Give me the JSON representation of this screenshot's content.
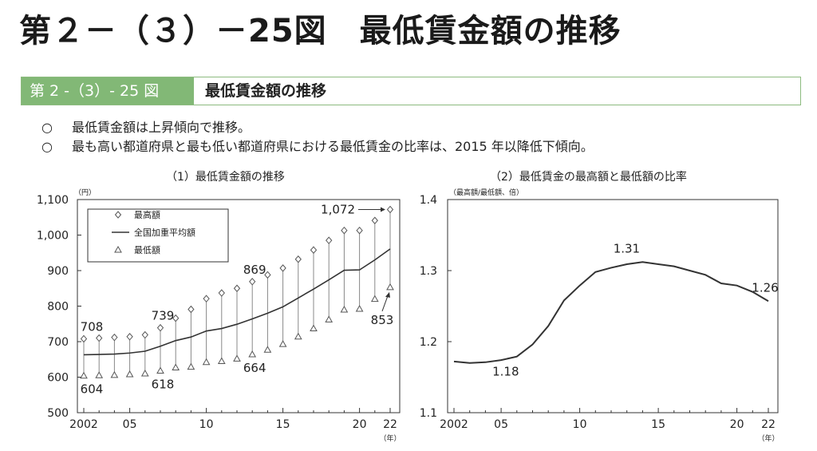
{
  "header": {
    "main_title": "第２－（３）－25図　最低賃金額の推移",
    "band_tag": "第 2 -（3）- 25 図",
    "band_title": "最低賃金額の推移"
  },
  "bullets": [
    {
      "mark": "○",
      "text": "最低賃金額は上昇傾向で推移。"
    },
    {
      "mark": "○",
      "text": "最も高い都道府県と最も低い都道府県における最低賃金の比率は、2015 年以降低下傾向。"
    }
  ],
  "chart_data": [
    {
      "type": "line",
      "title": "（1）最低賃金額の推移",
      "y_unit": "（円）",
      "x_unit": "（年）",
      "x": [
        2002,
        2003,
        2004,
        2005,
        2006,
        2007,
        2008,
        2009,
        2010,
        2011,
        2012,
        2013,
        2014,
        2015,
        2016,
        2017,
        2018,
        2019,
        2020,
        2021,
        2022
      ],
      "x_tick_values": [
        2002,
        2005,
        2010,
        2015,
        2020,
        2022
      ],
      "x_tick_labels": [
        "2002",
        "05",
        "10",
        "15",
        "20",
        "22"
      ],
      "ylim": [
        500,
        1100
      ],
      "y_ticks": [
        500,
        600,
        700,
        800,
        900,
        1000,
        1100
      ],
      "y_tick_labels": [
        "500",
        "600",
        "700",
        "800",
        "900",
        "1,000",
        "1,100"
      ],
      "grid": false,
      "legend_position": "top-left",
      "series": [
        {
          "name": "最高額",
          "marker": "diamond",
          "values": [
            708,
            710,
            712,
            714,
            719,
            739,
            766,
            791,
            821,
            837,
            850,
            869,
            888,
            907,
            932,
            958,
            985,
            1013,
            1013,
            1041,
            1072
          ]
        },
        {
          "name": "全国加重平均額",
          "marker": "line",
          "values": [
            663,
            664,
            665,
            668,
            673,
            687,
            703,
            713,
            730,
            737,
            749,
            764,
            780,
            798,
            823,
            848,
            874,
            901,
            902,
            930,
            961
          ]
        },
        {
          "name": "最低額",
          "marker": "triangle",
          "values": [
            604,
            605,
            606,
            608,
            610,
            618,
            627,
            629,
            642,
            645,
            652,
            664,
            677,
            693,
            714,
            737,
            762,
            790,
            792,
            820,
            853
          ]
        }
      ],
      "annotations": [
        {
          "text": "708",
          "x": 2002,
          "y": 708,
          "position": "above"
        },
        {
          "text": "604",
          "x": 2002,
          "y": 604,
          "position": "below"
        },
        {
          "text": "739",
          "x": 2007,
          "y": 739,
          "position": "above"
        },
        {
          "text": "618",
          "x": 2007,
          "y": 618,
          "position": "below"
        },
        {
          "text": "869",
          "x": 2013,
          "y": 869,
          "position": "above"
        },
        {
          "text": "664",
          "x": 2013,
          "y": 664,
          "position": "below"
        },
        {
          "text": "1,072",
          "x": 2022,
          "y": 1072,
          "position": "left-arrow"
        },
        {
          "text": "853",
          "x": 2022,
          "y": 853,
          "position": "below-arrow"
        }
      ]
    },
    {
      "type": "line",
      "title": "（2）最低賃金の最高額と最低額の比率",
      "y_unit": "（最高額/最低額、倍）",
      "x_unit": "（年）",
      "x": [
        2002,
        2003,
        2004,
        2005,
        2006,
        2007,
        2008,
        2009,
        2010,
        2011,
        2012,
        2013,
        2014,
        2015,
        2016,
        2017,
        2018,
        2019,
        2020,
        2021,
        2022
      ],
      "x_tick_values": [
        2002,
        2005,
        2010,
        2015,
        2020,
        2022
      ],
      "x_tick_labels": [
        "2002",
        "05",
        "10",
        "15",
        "20",
        "22"
      ],
      "ylim": [
        1.1,
        1.4
      ],
      "y_ticks": [
        1.1,
        1.2,
        1.3,
        1.4
      ],
      "y_tick_labels": [
        "1.1",
        "1.2",
        "1.3",
        "1.4"
      ],
      "grid": false,
      "series": [
        {
          "name": "",
          "values": [
            1.172,
            1.17,
            1.171,
            1.174,
            1.179,
            1.196,
            1.222,
            1.258,
            1.279,
            1.298,
            1.304,
            1.309,
            1.312,
            1.309,
            1.306,
            1.3,
            1.294,
            1.282,
            1.279,
            1.27,
            1.257
          ]
        }
      ],
      "annotations": [
        {
          "text": "1.18",
          "x": 2006,
          "y": 1.179,
          "position": "below"
        },
        {
          "text": "1.31",
          "x": 2014,
          "y": 1.312,
          "position": "above"
        },
        {
          "text": "1.26",
          "x": 2022,
          "y": 1.257,
          "position": "above"
        }
      ]
    }
  ],
  "colors": {
    "band_green": "#82b876",
    "band_border": "#8dbb7f",
    "line": "#333333",
    "marker_stroke": "#555555",
    "whisker": "#888888"
  }
}
